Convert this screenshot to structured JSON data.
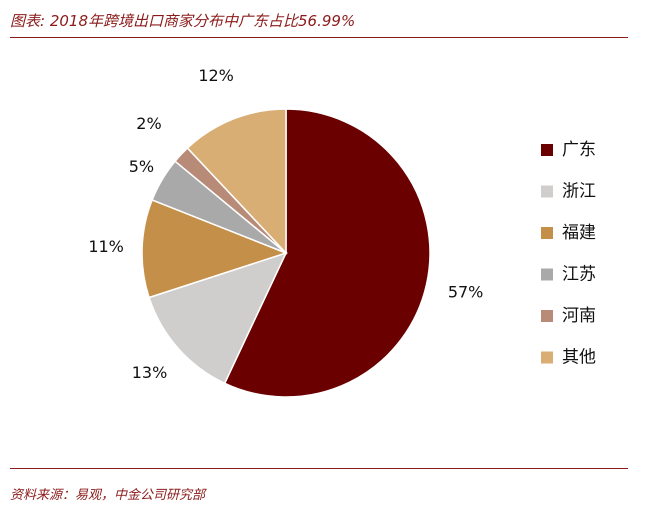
{
  "header": {
    "title": "图表: 2018年跨境出口商家分布中广东占比56.99%"
  },
  "footer": {
    "source": "资料来源：易观，中金公司研究部"
  },
  "chart_data": {
    "type": "pie",
    "categories": [
      "广东",
      "浙江",
      "福建",
      "江苏",
      "河南",
      "其他"
    ],
    "values": [
      57,
      13,
      11,
      5,
      2,
      12
    ],
    "labels": [
      "57%",
      "13%",
      "11%",
      "5%",
      "2%",
      "12%"
    ],
    "colors": [
      "#6b0000",
      "#d0cdcd",
      "#c48f48",
      "#a9a9a9",
      "#b88a78",
      "#d8ae74"
    ],
    "start_angle": "12 o'clock",
    "direction": "clockwise",
    "legend_position": "right"
  }
}
